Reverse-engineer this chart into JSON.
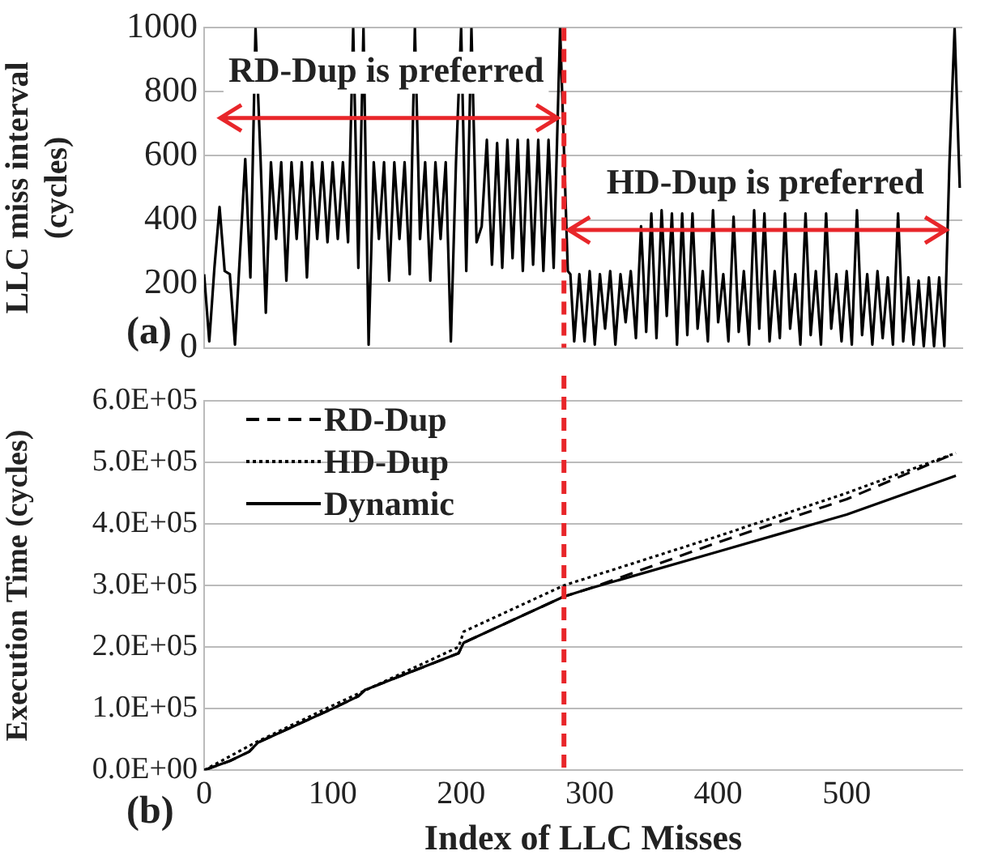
{
  "chart_data": [
    {
      "type": "line",
      "ylabel": "LLC miss interval (cycles)",
      "xlim": [
        0,
        590
      ],
      "ylim": [
        0,
        1000
      ],
      "yticks": [
        0,
        200,
        400,
        600,
        800,
        1000
      ],
      "tick_labels": "y",
      "grid": "y",
      "x": [
        0,
        4,
        8,
        12,
        16,
        20,
        24,
        28,
        32,
        36,
        40,
        44,
        48,
        52,
        56,
        60,
        64,
        68,
        72,
        76,
        80,
        84,
        88,
        92,
        96,
        100,
        104,
        108,
        112,
        116,
        120,
        124,
        128,
        132,
        136,
        140,
        144,
        148,
        152,
        156,
        160,
        164,
        168,
        172,
        176,
        180,
        184,
        188,
        192,
        196,
        200,
        204,
        208,
        212,
        216,
        220,
        224,
        228,
        232,
        236,
        240,
        244,
        248,
        252,
        256,
        260,
        264,
        268,
        272,
        277,
        283,
        285,
        288,
        292,
        296,
        300,
        304,
        308,
        312,
        316,
        320,
        324,
        328,
        332,
        336,
        340,
        344,
        348,
        352,
        356,
        360,
        364,
        368,
        372,
        376,
        380,
        384,
        388,
        392,
        396,
        400,
        404,
        408,
        412,
        416,
        420,
        424,
        428,
        432,
        436,
        440,
        444,
        448,
        452,
        456,
        460,
        464,
        468,
        472,
        476,
        480,
        484,
        488,
        492,
        496,
        500,
        504,
        508,
        512,
        516,
        520,
        524,
        528,
        532,
        536,
        540,
        544,
        548,
        552,
        556,
        560,
        564,
        568,
        572,
        576,
        580,
        584,
        588
      ],
      "series": [
        {
          "color": "#000000",
          "line_style": "solid",
          "values": [
            230,
            20,
            250,
            440,
            240,
            230,
            10,
            300,
            590,
            220,
            1000,
            580,
            110,
            580,
            340,
            580,
            210,
            580,
            340,
            580,
            220,
            580,
            340,
            580,
            330,
            580,
            340,
            580,
            330,
            1000,
            250,
            1000,
            10,
            580,
            340,
            580,
            210,
            580,
            340,
            580,
            230,
            1000,
            340,
            580,
            210,
            580,
            340,
            580,
            20,
            580,
            1000,
            240,
            1000,
            330,
            380,
            650,
            260,
            640,
            250,
            650,
            280,
            650,
            240,
            650,
            260,
            650,
            240,
            650,
            250,
            1000,
            240,
            230,
            20,
            230,
            20,
            240,
            10,
            230,
            60,
            240,
            10,
            230,
            80,
            240,
            30,
            380,
            50,
            420,
            30,
            430,
            100,
            420,
            10,
            420,
            40,
            420,
            60,
            240,
            20,
            430,
            80,
            230,
            20,
            410,
            50,
            240,
            10,
            430,
            60,
            420,
            20,
            240,
            30,
            420,
            60,
            230,
            10,
            420,
            40,
            240,
            10,
            420,
            60,
            230,
            20,
            240,
            10,
            430,
            40,
            230,
            10,
            240,
            30,
            220,
            10,
            420,
            20,
            220,
            10,
            210,
            5,
            220,
            5,
            220,
            5,
            580,
            1000,
            500
          ]
        }
      ],
      "ref_lines": [
        {
          "axis": "x",
          "value": 280,
          "color": "#e8262a",
          "line_style": "dashed"
        }
      ],
      "annotations": [
        "RD-Dup is preferred",
        "HD-Dup is preferred",
        "(a)"
      ]
    },
    {
      "type": "line",
      "xlabel": "Index of LLC Misses",
      "ylabel": "Execution Time (cycles)",
      "xlim": [
        0,
        590
      ],
      "ylim": [
        0,
        600000
      ],
      "xticks": [
        0,
        100,
        200,
        300,
        400,
        500
      ],
      "yticks": [
        {
          "value": 0,
          "label": "0.0E+00"
        },
        {
          "value": 100000,
          "label": "1.0E+05"
        },
        {
          "value": 200000,
          "label": "2.0E+05"
        },
        {
          "value": 300000,
          "label": "3.0E+05"
        },
        {
          "value": 400000,
          "label": "4.0E+05"
        },
        {
          "value": 500000,
          "label": "5.0E+05"
        },
        {
          "value": 600000,
          "label": "6.0E+05"
        }
      ],
      "grid": "y",
      "legend": "top left",
      "series": [
        {
          "name": "RD-Dup",
          "color": "#000000",
          "line_style": "dashed",
          "x": [
            0,
            20,
            35,
            42,
            100,
            120,
            125,
            198,
            202,
            280,
            300,
            400,
            450,
            500,
            585
          ],
          "values": [
            0,
            15000,
            30000,
            45000,
            100000,
            120000,
            130000,
            190000,
            207000,
            282000,
            295000,
            370000,
            405000,
            440000,
            515000
          ]
        },
        {
          "name": "HD-Dup",
          "color": "#000000",
          "line_style": "dotted",
          "x": [
            0,
            40,
            100,
            198,
            202,
            280,
            400,
            500,
            585
          ],
          "values": [
            0,
            45000,
            105000,
            200000,
            225000,
            300000,
            380000,
            450000,
            515000
          ]
        },
        {
          "name": "Dynamic",
          "color": "#000000",
          "line_style": "solid",
          "x": [
            0,
            20,
            35,
            42,
            100,
            120,
            125,
            198,
            202,
            280,
            300,
            400,
            450,
            500,
            585
          ],
          "values": [
            0,
            15000,
            30000,
            45000,
            100000,
            120000,
            130000,
            190000,
            207000,
            282000,
            295000,
            355000,
            385000,
            415000,
            478000
          ]
        }
      ],
      "ref_lines": [
        {
          "axis": "x",
          "value": 280,
          "color": "#e8262a",
          "line_style": "dashed"
        }
      ],
      "annotations": [
        "(b)"
      ]
    }
  ]
}
